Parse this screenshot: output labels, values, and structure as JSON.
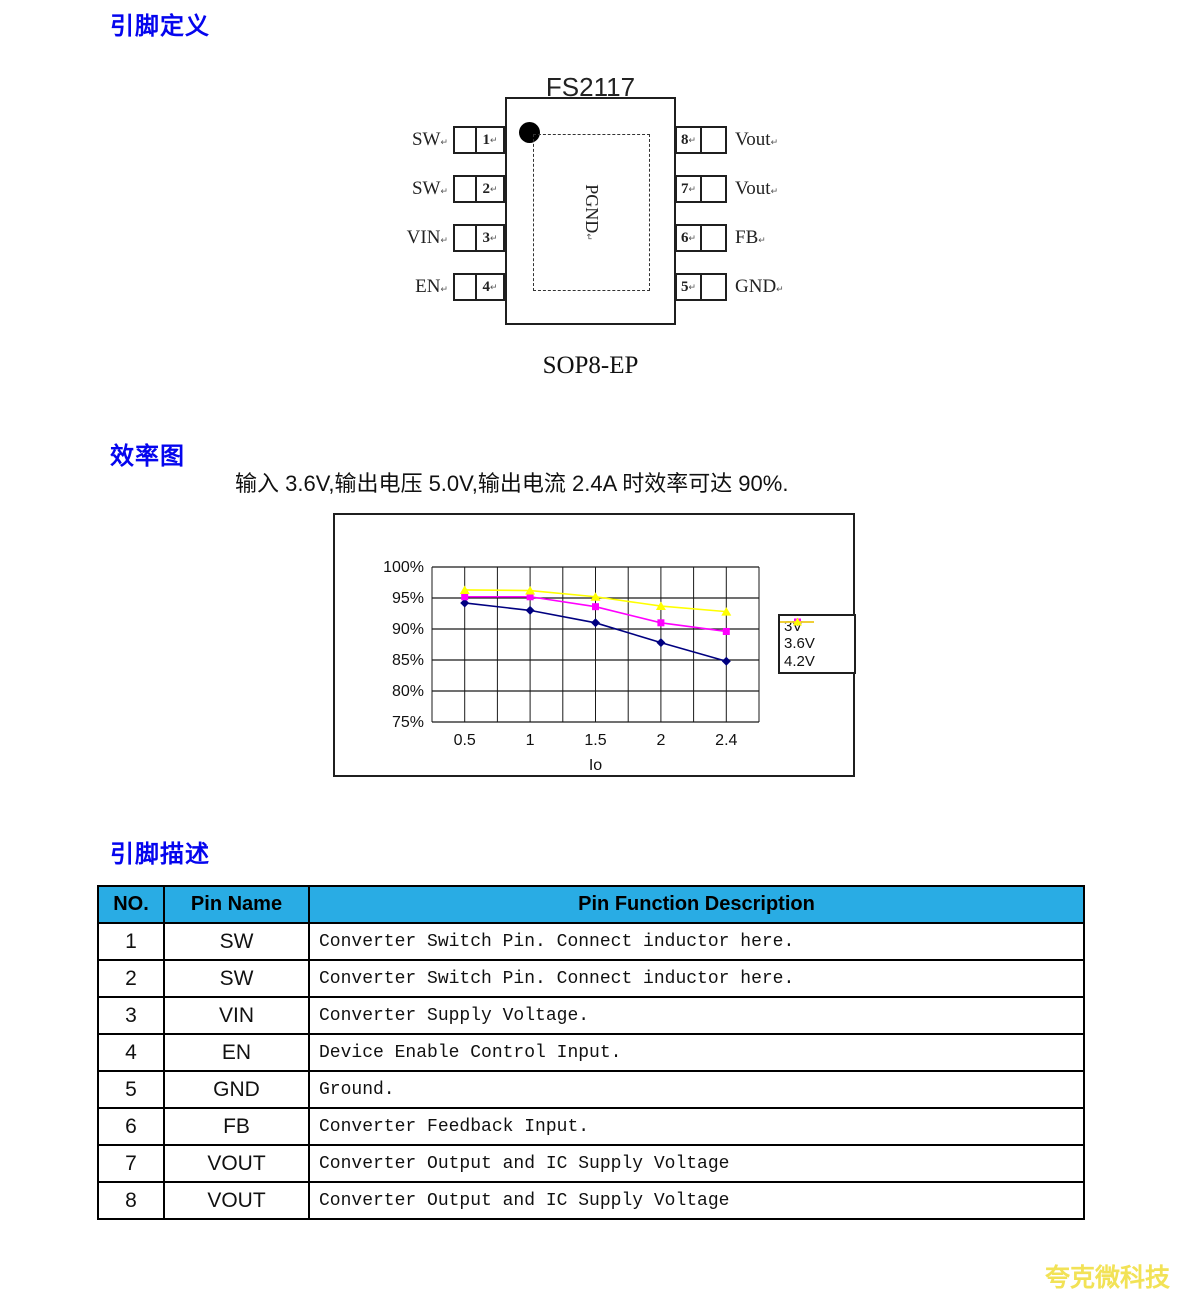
{
  "sections": {
    "pin_definition": "引脚定义",
    "efficiency": "效率图",
    "pin_description": "引脚描述"
  },
  "chip": {
    "title": "FS2117",
    "package": "SOP8-EP",
    "center_label": "PGND",
    "ret": "↵",
    "left_pins": [
      {
        "num": "1",
        "name": "SW"
      },
      {
        "num": "2",
        "name": "SW"
      },
      {
        "num": "3",
        "name": "VIN"
      },
      {
        "num": "4",
        "name": "EN"
      }
    ],
    "right_pins": [
      {
        "num": "8",
        "name": "Vout"
      },
      {
        "num": "7",
        "name": "Vout"
      },
      {
        "num": "6",
        "name": "FB"
      },
      {
        "num": "5",
        "name": "GND"
      }
    ]
  },
  "efficiency": {
    "caption": "输入 3.6V,输出电压 5.0V,输出电流 2.4A 时效率可达 90%."
  },
  "chart_data": {
    "type": "line",
    "x": [
      0.5,
      1,
      1.5,
      2,
      2.4
    ],
    "x_tick_labels": [
      "0.5",
      "1",
      "1.5",
      "2",
      "2.4"
    ],
    "xlabel": "Io",
    "ylabel": "",
    "ylim": [
      75,
      100
    ],
    "y_ticks": [
      "100%",
      "95%",
      "90%",
      "85%",
      "80%",
      "75%"
    ],
    "grid": true,
    "legend_position": "right",
    "series": [
      {
        "name": "3V",
        "color": "#000080",
        "marker": "diamond",
        "values": [
          94.2,
          93.0,
          91.0,
          87.8,
          84.8
        ]
      },
      {
        "name": "3.6V",
        "color": "#ff00ff",
        "marker": "square",
        "values": [
          95.2,
          95.2,
          93.6,
          91.0,
          89.6
        ]
      },
      {
        "name": "4.2V",
        "color": "#ffff00",
        "marker": "triangle",
        "values": [
          96.3,
          96.2,
          95.2,
          93.7,
          92.8
        ]
      }
    ]
  },
  "pin_table": {
    "header_bg": "#29ace4",
    "headers": [
      "NO.",
      "Pin Name",
      "Pin Function Description"
    ],
    "rows": [
      [
        "1",
        "SW",
        "Converter Switch Pin. Connect inductor here."
      ],
      [
        "2",
        "SW",
        "Converter Switch Pin. Connect inductor here."
      ],
      [
        "3",
        "VIN",
        "Converter Supply Voltage."
      ],
      [
        "4",
        "EN",
        "Device Enable Control Input."
      ],
      [
        "5",
        "GND",
        "Ground."
      ],
      [
        "6",
        "FB",
        "Converter Feedback Input."
      ],
      [
        "7",
        "VOUT",
        "Converter Output and IC Supply Voltage"
      ],
      [
        "8",
        "VOUT",
        "Converter Output and IC Supply Voltage"
      ]
    ]
  },
  "watermark": "夸克微科技"
}
